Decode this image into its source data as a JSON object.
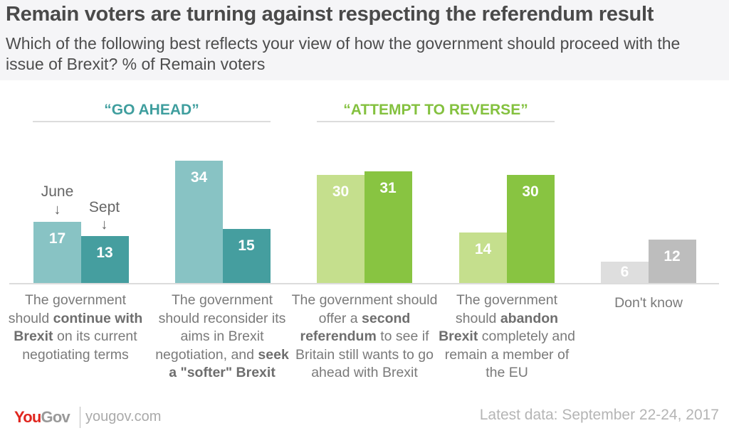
{
  "header": {
    "title": "Remain voters are turning against respecting the referendum result",
    "subtitle": "Which of the following best reflects your view of how the government should proceed with the issue of Brexit? % of Remain voters"
  },
  "groups": [
    {
      "label": "“GO AHEAD”",
      "color": "#3f9e9e"
    },
    {
      "label": "“ATTEMPT TO REVERSE”",
      "color": "#84c13f"
    }
  ],
  "annotations": {
    "june": "June",
    "sept": "Sept",
    "arrow": "↓"
  },
  "chart_data": {
    "type": "bar",
    "title": "Remain voters are turning against respecting the referendum result",
    "subtitle": "Which of the following best reflects your view of how the government should proceed with the issue of Brexit? % of Remain voters",
    "xlabel": "",
    "ylabel": "% of Remain voters",
    "ylim": [
      0,
      34
    ],
    "grid": false,
    "legend": "inline annotations (June, Sept) above first category",
    "categories": [
      "The government should continue with Brexit on its current negotiating terms",
      "The government should reconsider its aims in Brexit negotiation, and seek a \"softer\" Brexit",
      "The government should offer a second referendum to see if Britain still wants to go ahead with Brexit",
      "The government should abandon Brexit completely and remain a member of the EU",
      "Don't know"
    ],
    "series": [
      {
        "name": "June",
        "values": [
          17,
          34,
          30,
          14,
          6
        ],
        "colors": [
          "#88c3c4",
          "#88c3c4",
          "#c5df8d",
          "#c5df8d",
          "#dedede"
        ]
      },
      {
        "name": "Sept",
        "values": [
          13,
          15,
          31,
          30,
          12
        ],
        "colors": [
          "#459e9f",
          "#459e9f",
          "#88c441",
          "#88c441",
          "#bdbdbd"
        ]
      }
    ]
  },
  "category_labels": [
    {
      "pre": "The government should ",
      "bold": "continue with Brexit",
      "post": " on its current negotiating terms"
    },
    {
      "pre": "The government should reconsider its aims in Brexit negotiation, and ",
      "bold": "seek a \"softer\" Brexit",
      "post": ""
    },
    {
      "pre": "The government should offer a ",
      "bold": "second referendum",
      "post": " to see if Britain still wants to go ahead with Brexit"
    },
    {
      "pre": "The government should ",
      "bold": "abandon Brexit",
      "post": " completely and remain a member of the EU"
    },
    {
      "pre": "Don't know",
      "bold": "",
      "post": ""
    }
  ],
  "footer": {
    "logo_you": "You",
    "logo_gov": "Gov",
    "url": "yougov.com",
    "date": "Latest data: September 22-24, 2017"
  }
}
